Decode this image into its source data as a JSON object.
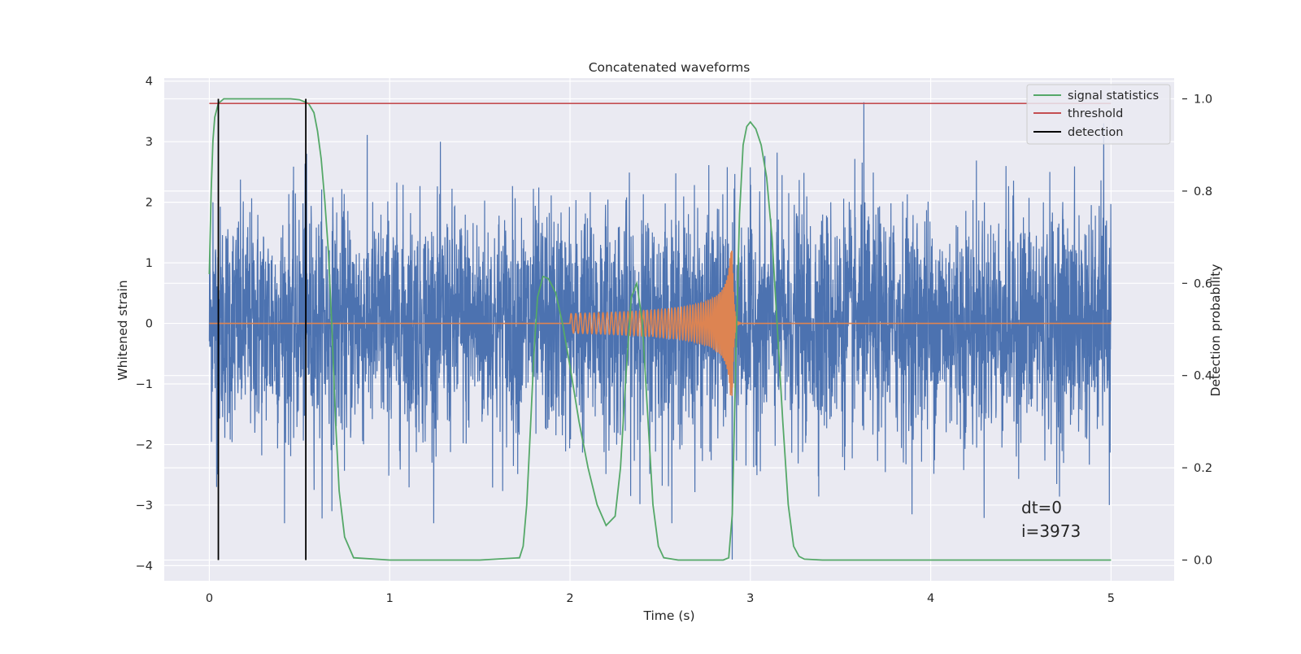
{
  "chart_data": {
    "type": "line",
    "title": "Concatenated waveforms",
    "xlabel": "Time (s)",
    "ylabel": "Whitened strain",
    "y2label": "Detection probability",
    "xlim": [
      -0.25,
      5.35
    ],
    "ylim": [
      -4.25,
      4.05
    ],
    "y2lim": [
      -0.045,
      1.045
    ],
    "x_ticks": [
      0,
      1,
      2,
      3,
      4,
      5
    ],
    "y_ticks": [
      -4,
      -3,
      -2,
      -1,
      0,
      1,
      2,
      3,
      4
    ],
    "y2_ticks": [
      0.0,
      0.2,
      0.4,
      0.6,
      0.8,
      1.0
    ],
    "x_tick_labels": [
      "0",
      "1",
      "2",
      "3",
      "4",
      "5"
    ],
    "y_tick_labels": [
      "−4",
      "−3",
      "−2",
      "−1",
      "0",
      "1",
      "2",
      "3",
      "4"
    ],
    "y2_tick_labels": [
      "0.0",
      "0.2",
      "0.4",
      "0.6",
      "0.8",
      "1.0"
    ],
    "grid": true,
    "legend_position": "top-right",
    "colors": {
      "strain": "#4c72b0",
      "waveform": "#dd8452",
      "signal_statistics": "#55a868",
      "threshold": "#c44e52",
      "detection": "#000000",
      "axes_background": "#eaeaf2",
      "grid": "#ffffff"
    },
    "strain": {
      "x_range": [
        0,
        5
      ],
      "typical_amplitude": 0.95,
      "peak_values": [
        {
          "x": 0.02,
          "y": 2.0
        },
        {
          "x": 0.04,
          "y": -2.7
        },
        {
          "x": 0.54,
          "y": 2.8
        },
        {
          "x": 0.68,
          "y": 3.5
        },
        {
          "x": 0.68,
          "y": -3.1
        },
        {
          "x": 3.63,
          "y": 3.65
        },
        {
          "x": 2.9,
          "y": -3.9
        },
        {
          "x": 4.96,
          "y": 3.3
        },
        {
          "x": 4.99,
          "y": -3.0
        }
      ]
    },
    "waveform": {
      "start": 2.0,
      "merger": 2.9,
      "end": 3.0,
      "peak_amplitude": 1.2,
      "baseline": 0
    },
    "series": [
      {
        "name": "signal statistics",
        "axis": "right",
        "x": [
          0.0,
          0.01,
          0.02,
          0.03,
          0.05,
          0.08,
          0.12,
          0.3,
          0.45,
          0.5,
          0.55,
          0.58,
          0.6,
          0.62,
          0.64,
          0.66,
          0.68,
          0.7,
          0.72,
          0.75,
          0.8,
          1.0,
          1.5,
          1.72,
          1.74,
          1.76,
          1.78,
          1.8,
          1.82,
          1.85,
          1.88,
          1.92,
          1.96,
          2.0,
          2.05,
          2.1,
          2.15,
          2.2,
          2.25,
          2.28,
          2.31,
          2.34,
          2.37,
          2.4,
          2.43,
          2.46,
          2.49,
          2.52,
          2.6,
          2.7,
          2.85,
          2.88,
          2.9,
          2.92,
          2.94,
          2.96,
          2.98,
          3.0,
          3.03,
          3.06,
          3.09,
          3.12,
          3.15,
          3.18,
          3.21,
          3.24,
          3.27,
          3.3,
          3.4,
          4.0,
          5.0
        ],
        "values": [
          0.62,
          0.8,
          0.91,
          0.96,
          0.99,
          1.0,
          1.0,
          1.0,
          1.0,
          0.998,
          0.99,
          0.97,
          0.93,
          0.87,
          0.78,
          0.67,
          0.5,
          0.3,
          0.15,
          0.05,
          0.005,
          0.0,
          0.0,
          0.005,
          0.03,
          0.12,
          0.28,
          0.45,
          0.57,
          0.615,
          0.61,
          0.58,
          0.51,
          0.42,
          0.3,
          0.2,
          0.12,
          0.075,
          0.095,
          0.2,
          0.4,
          0.57,
          0.6,
          0.52,
          0.32,
          0.12,
          0.03,
          0.005,
          0.0,
          0.0,
          0.0,
          0.005,
          0.1,
          0.45,
          0.75,
          0.9,
          0.94,
          0.95,
          0.935,
          0.9,
          0.83,
          0.7,
          0.5,
          0.3,
          0.12,
          0.03,
          0.008,
          0.002,
          0.0,
          0.0,
          0.0
        ]
      },
      {
        "name": "threshold",
        "axis": "right",
        "x": [
          0,
          5
        ],
        "values": [
          0.99,
          0.99
        ]
      },
      {
        "name": "detection",
        "axis": "right",
        "x": [
          0.05,
          0.535
        ],
        "values": [
          1.0,
          1.0
        ]
      }
    ],
    "annotations": [
      "dt=0",
      "i=3973"
    ]
  }
}
